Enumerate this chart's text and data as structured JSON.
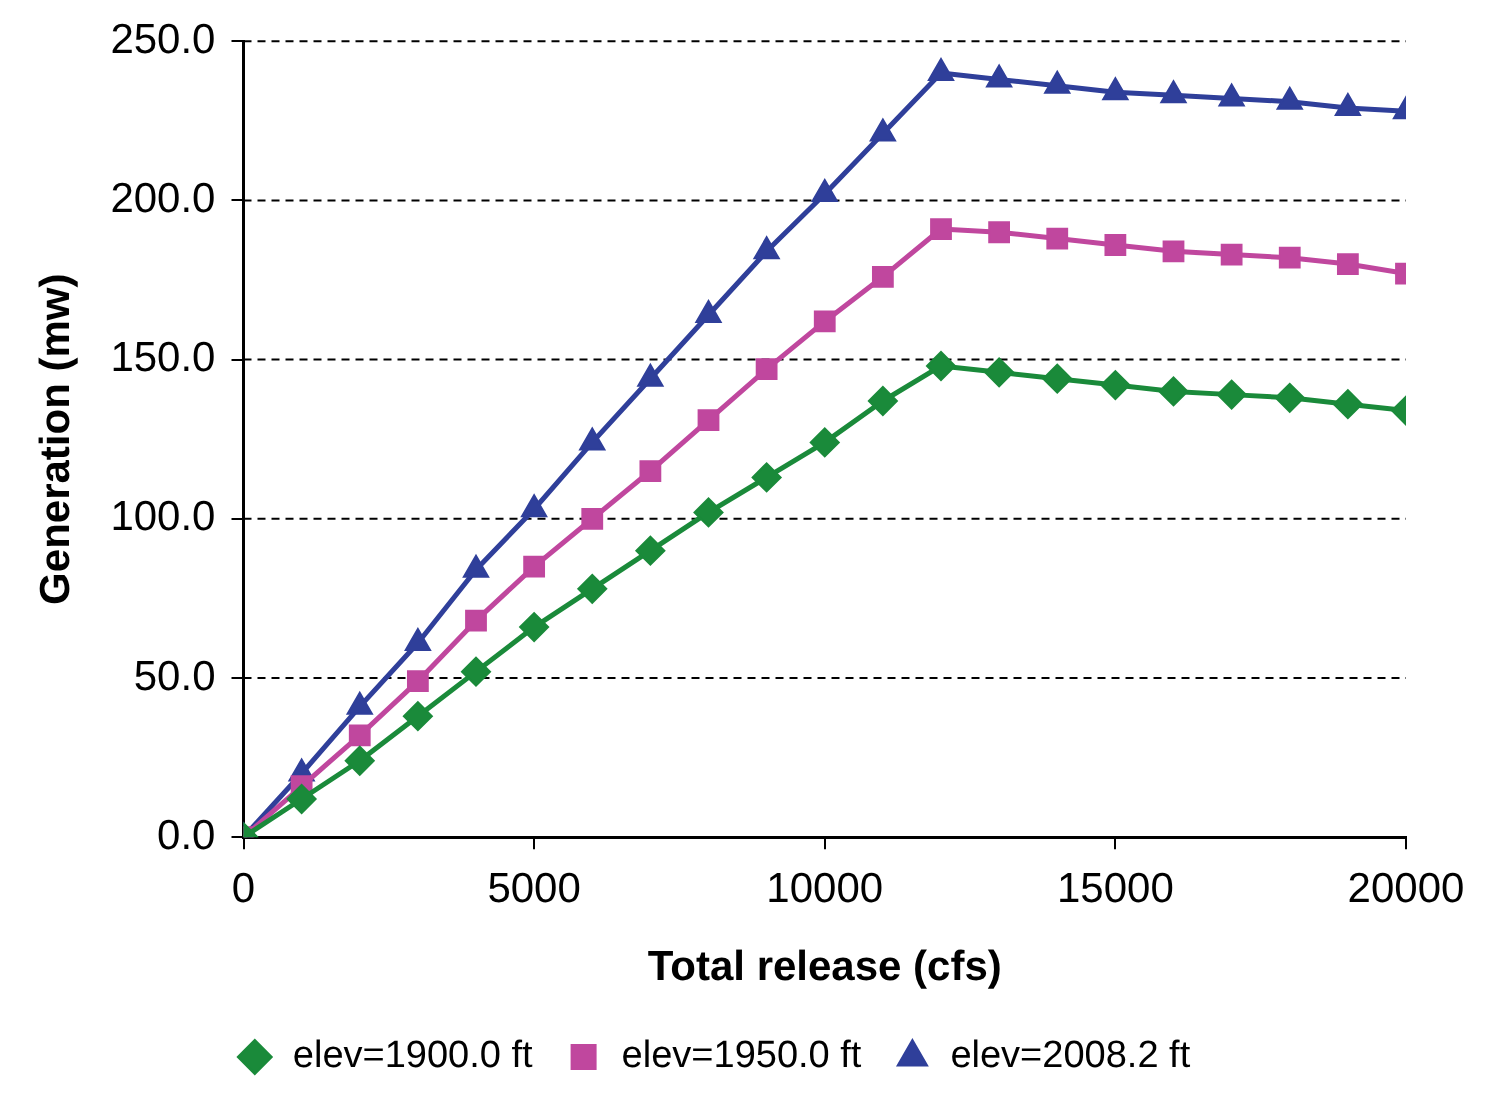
{
  "chart_data": {
    "type": "line",
    "xlabel": "Total release (cfs)",
    "ylabel": "Generation (mw)",
    "x": [
      0,
      1000,
      2000,
      3000,
      4000,
      5000,
      6000,
      7000,
      8000,
      9000,
      10000,
      11000,
      12000,
      13000,
      14000,
      15000,
      16000,
      17000,
      18000,
      19000,
      20000
    ],
    "series": [
      {
        "name": "elev=1900.0 ft",
        "color": "#1a8a3a",
        "marker": "diamond",
        "values": [
          0,
          12,
          24,
          38,
          52,
          66,
          78,
          90,
          102,
          113,
          124,
          137,
          148,
          146,
          144,
          142,
          140,
          139,
          138,
          136,
          134
        ]
      },
      {
        "name": "elev=1950.0 ft",
        "color": "#c0479e",
        "marker": "square",
        "values": [
          0,
          16,
          32,
          49,
          68,
          85,
          100,
          115,
          131,
          147,
          162,
          176,
          191,
          190,
          188,
          186,
          184,
          183,
          182,
          180,
          177
        ]
      },
      {
        "name": "elev=2008.2 ft",
        "color": "#2f3f9a",
        "marker": "triangle",
        "values": [
          0,
          20,
          41,
          61,
          84,
          103,
          124,
          144,
          164,
          184,
          202,
          221,
          240,
          238,
          236,
          234,
          233,
          232,
          231,
          229,
          228
        ]
      }
    ],
    "xlim": [
      0,
      20000
    ],
    "xticks": [
      0,
      5000,
      10000,
      15000,
      20000
    ],
    "ylim": [
      0,
      250
    ],
    "yticks": [
      {
        "value": 0,
        "label": "0.0"
      },
      {
        "value": 50,
        "label": "50.0"
      },
      {
        "value": 100,
        "label": "100.0"
      },
      {
        "value": 150,
        "label": "150.0"
      },
      {
        "value": 200,
        "label": "200.0"
      },
      {
        "value": 250,
        "label": "250.0"
      }
    ],
    "grid": "y",
    "legend": "bottom",
    "line_style": "solid"
  }
}
